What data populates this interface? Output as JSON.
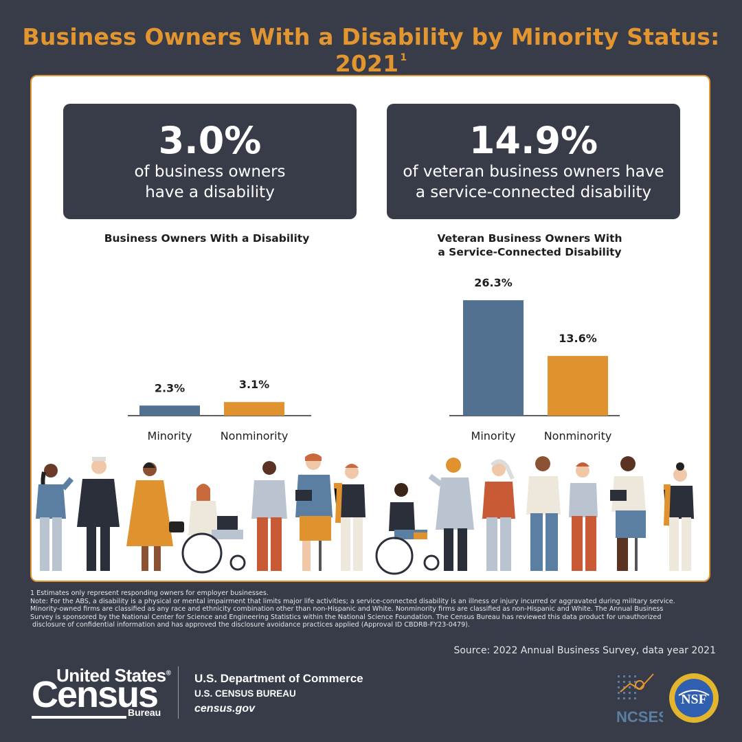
{
  "title": "Business Owners With a Disability by Minority Status: 2021",
  "title_footnote_mark": "1",
  "stats": [
    {
      "value": "3.0%",
      "text": "of business owners\n have a disability"
    },
    {
      "value": "14.9%",
      "text": "of veteran business owners have\na service-connected disability"
    }
  ],
  "chart_data": [
    {
      "type": "bar",
      "title": "Business Owners With a Disability",
      "categories": [
        "Minority",
        "Nonminority"
      ],
      "values": [
        2.3,
        3.1
      ],
      "value_labels": [
        "2.3%",
        "3.1%"
      ],
      "colors": [
        "#527090",
        "#e0922f"
      ],
      "ylim": [
        0,
        30
      ]
    },
    {
      "type": "bar",
      "title": "Veteran Business Owners With\na Service-Connected Disability",
      "categories": [
        "Minority",
        "Nonminority"
      ],
      "values": [
        26.3,
        13.6
      ],
      "value_labels": [
        "26.3%",
        "13.6%"
      ],
      "colors": [
        "#527090",
        "#e0922f"
      ],
      "ylim": [
        0,
        30
      ]
    }
  ],
  "footnotes": [
    "1 Estimates only represent responding owners for employer businesses.",
    "Note: For the ABS, a disability is a physical or mental impairment that limits major life activities; a service-connected disability is an illness or injury incurred or aggravated during military service.",
    "Minority-owned firms are classified as any race and ethnicity combination other than non-Hispanic and White. Nonminority firms are classified as non-Hispanic and White. The Annual Business",
    "Survey is sponsored by the National Center for Science and Engineering Statistics within the National Science Foundation. The Census Bureau has reviewed this data product for unauthorized",
    " disclosure of confidential information and has approved the disclosure avoidance practices applied (Approval ID CBDRB-FY23-0479)."
  ],
  "source": "Source: 2022 Annual Business Survey, data year 2021",
  "logo": {
    "line1": "United States",
    "reg": "®",
    "line2": "Census",
    "line3": "Bureau"
  },
  "department": {
    "name": "U.S. Department of Commerce",
    "bureau": "U.S. CENSUS BUREAU",
    "site": "census.gov"
  },
  "partner_logos": {
    "ncses": "NCSES",
    "nsf": "NSF"
  }
}
